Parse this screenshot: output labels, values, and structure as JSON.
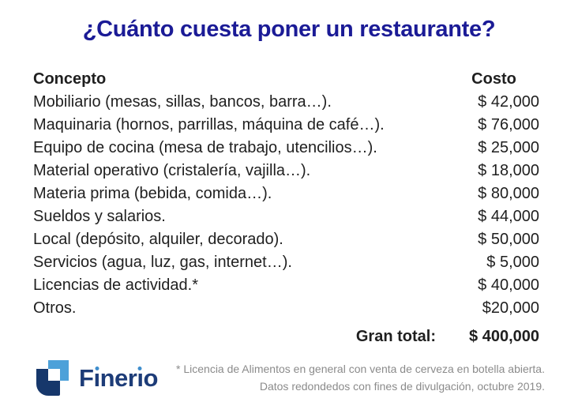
{
  "title": "¿Cuánto cuesta poner un restaurante?",
  "table": {
    "header": {
      "concept": "Concepto",
      "cost": "Costo"
    },
    "rows": [
      {
        "concept": "Mobiliario (mesas, sillas, bancos, barra…).",
        "cost": "$ 42,000"
      },
      {
        "concept": "Maquinaria (hornos, parrillas, máquina de café…).",
        "cost": "$ 76,000"
      },
      {
        "concept": "Equipo de cocina (mesa de trabajo, utencilios…).",
        "cost": "$ 25,000"
      },
      {
        "concept": "Material operativo (cristalería, vajilla…).",
        "cost": "$ 18,000"
      },
      {
        "concept": "Materia prima (bebida, comida…).",
        "cost": "$ 80,000"
      },
      {
        "concept": "Sueldos y salarios.",
        "cost": "$ 44,000"
      },
      {
        "concept": "Local (depósito, alquiler, decorado).",
        "cost": "$ 50,000"
      },
      {
        "concept": "Servicios (agua, luz, gas, internet…).",
        "cost": "$ 5,000"
      },
      {
        "concept": "Licencias de actividad.*",
        "cost": "$ 40,000"
      },
      {
        "concept": "Otros.",
        "cost": "$20,000"
      }
    ],
    "total": {
      "label": "Gran total:",
      "value": "$ 400,000"
    }
  },
  "footer": {
    "brand": "Finerio",
    "note_line1": "* Licencia de Alimentos en general con venta de cerveza en botella abierta.",
    "note_line2": "Datos redondedos con fines de divulgación, octubre 2019."
  },
  "colors": {
    "title-navy": "#1b1b96",
    "text-dark": "#1f1f1f",
    "note-gray": "#8b8b8b",
    "brand-navy": "#1d3c78",
    "brand-lightblue": "#4da1d9",
    "brand-darkblue": "#16376b",
    "dot-blue": "#3f8ecd",
    "page-bg": "#ffffff"
  }
}
